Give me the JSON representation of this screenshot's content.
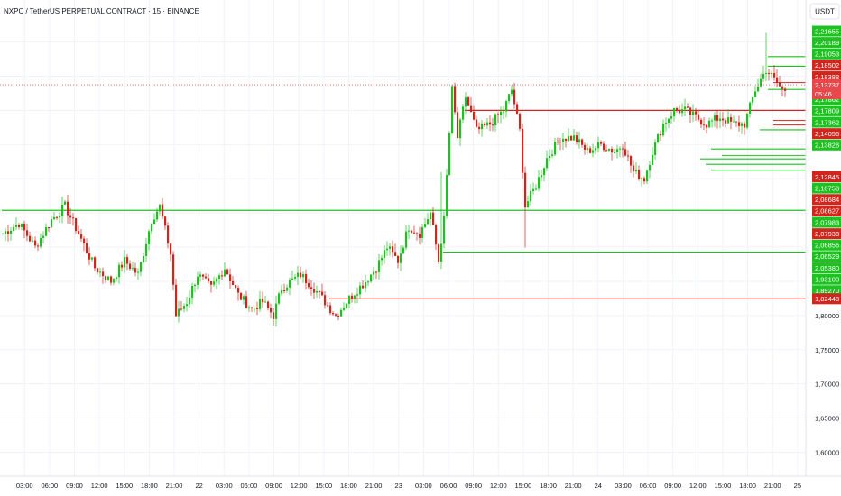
{
  "header": {
    "title": "NXPC / TetherUS PERPETUAL CONTRACT · 15 · BINANCE",
    "currency_button": "USDT"
  },
  "chart_data": {
    "type": "candlestick",
    "symbol": "NXPC / TetherUS PERPETUAL CONTRACT",
    "interval": "15",
    "exchange": "BINANCE",
    "ylim": [
      1.56,
      2.23
    ],
    "price_ticks": [
      "1,85000",
      "1,80000",
      "1,75000",
      "1,70000",
      "1,65000",
      "1,60000"
    ],
    "price_tick_values": [
      1.85,
      1.8,
      1.75,
      1.7,
      1.65,
      1.6
    ],
    "time_ticks": [
      "03:00",
      "06:00",
      "09:00",
      "12:00",
      "15:00",
      "18:00",
      "21:00",
      "22",
      "03:00",
      "06:00",
      "09:00",
      "12:00",
      "15:00",
      "18:00",
      "21:00",
      "23",
      "03:00",
      "06:00",
      "09:00",
      "12:00",
      "15:00",
      "18:00",
      "21:00",
      "24",
      "03:00",
      "06:00",
      "09:00",
      "12:00",
      "15:00",
      "18:00",
      "21:00",
      "25"
    ],
    "current_price": {
      "label": "2,13737",
      "countdown": "05:46",
      "value": 2.13737
    },
    "price_tags": [
      {
        "label": "2,21655",
        "value": 2.21655,
        "color": "#1ec220"
      },
      {
        "label": "2,20189",
        "value": 2.20189,
        "color": "#1ec220"
      },
      {
        "label": "2,19053",
        "value": 2.19053,
        "color": "#1ec220"
      },
      {
        "label": "2,18502",
        "value": 2.18502,
        "color": "#d1261d"
      },
      {
        "label": "2,18388",
        "value": 2.18388,
        "color": "#d1261d"
      },
      {
        "label": "2,18146",
        "value": 2.18146,
        "color": "#d1261d"
      },
      {
        "label": "2,17862",
        "value": 2.17862,
        "color": "#1ec220"
      },
      {
        "label": "2,17809",
        "value": 2.17809,
        "color": "#1ec220"
      },
      {
        "label": "2,17362",
        "value": 2.17362,
        "color": "#1ec220"
      },
      {
        "label": "2,14056",
        "value": 2.14056,
        "color": "#d1261d"
      },
      {
        "label": "2,13828",
        "value": 2.13828,
        "color": "#1ec220"
      },
      {
        "label": "2,12845",
        "value": 2.12845,
        "color": "#d1261d"
      },
      {
        "label": "2,10758",
        "value": 2.10758,
        "color": "#1ec220"
      },
      {
        "label": "2,08684",
        "value": 2.08684,
        "color": "#d1261d"
      },
      {
        "label": "2,08627",
        "value": 2.08627,
        "color": "#d1261d"
      },
      {
        "label": "2,07983",
        "value": 2.07983,
        "color": "#1ec220"
      },
      {
        "label": "2,07938",
        "value": 2.07938,
        "color": "#d1261d"
      },
      {
        "label": "2,06856",
        "value": 2.06856,
        "color": "#1ec220"
      },
      {
        "label": "2,06529",
        "value": 2.06529,
        "color": "#1ec220"
      },
      {
        "label": "2,05380",
        "value": 2.0538,
        "color": "#1ec220"
      },
      {
        "label": "1,93100",
        "value": 1.931,
        "color": "#1ec220"
      },
      {
        "label": "1,89270",
        "value": 1.8927,
        "color": "#1ec220"
      },
      {
        "label": "1,82448",
        "value": 1.82448,
        "color": "#d1261d"
      }
    ],
    "long_lines": [
      {
        "from_bar": 0,
        "value": 1.9538,
        "color": "#1ec220"
      },
      {
        "from_bar": 163,
        "value": 1.8927,
        "color": "#1ec220"
      },
      {
        "from_bar": 121,
        "value": 1.82448,
        "color": "#d1261d"
      },
      {
        "from_bar": 171,
        "value": 2.1,
        "color": "#d1261d"
      }
    ],
    "short_lines": [
      {
        "from_bar": 283,
        "value": 2.1786,
        "color": "#1ec220"
      },
      {
        "from_bar": 283,
        "value": 2.1646,
        "color": "#1ec220"
      },
      {
        "from_bar": 285,
        "value": 2.1406,
        "color": "#d1261d"
      },
      {
        "from_bar": 283,
        "value": 2.1306,
        "color": "#1ec220"
      },
      {
        "from_bar": 285,
        "value": 2.0852,
        "color": "#d1261d"
      },
      {
        "from_bar": 285,
        "value": 2.0786,
        "color": "#d1261d"
      },
      {
        "from_bar": 280,
        "value": 2.0716,
        "color": "#1ec220"
      },
      {
        "from_bar": 262,
        "value": 2.0436,
        "color": "#1ec220"
      },
      {
        "from_bar": 266,
        "value": 2.0341,
        "color": "#1ec220"
      },
      {
        "from_bar": 258,
        "value": 2.0291,
        "color": "#1ec220"
      },
      {
        "from_bar": 260,
        "value": 2.0211,
        "color": "#1ec220"
      },
      {
        "from_bar": 262,
        "value": 2.0126,
        "color": "#1ec220"
      }
    ],
    "bull_color": "#1ec220",
    "bear_color": "#d1261d",
    "anchors": [
      [
        0,
        1.92
      ],
      [
        6,
        1.935
      ],
      [
        12,
        1.9
      ],
      [
        18,
        1.94
      ],
      [
        23,
        1.96
      ],
      [
        28,
        1.92
      ],
      [
        34,
        1.87
      ],
      [
        40,
        1.85
      ],
      [
        45,
        1.88
      ],
      [
        50,
        1.86
      ],
      [
        55,
        1.94
      ],
      [
        58,
        1.96
      ],
      [
        62,
        1.89
      ],
      [
        64,
        1.8
      ],
      [
        68,
        1.82
      ],
      [
        72,
        1.86
      ],
      [
        77,
        1.84
      ],
      [
        82,
        1.87
      ],
      [
        87,
        1.83
      ],
      [
        92,
        1.81
      ],
      [
        96,
        1.82
      ],
      [
        100,
        1.8
      ],
      [
        103,
        1.84
      ],
      [
        110,
        1.86
      ],
      [
        115,
        1.84
      ],
      [
        119,
        1.82
      ],
      [
        123,
        1.8
      ],
      [
        129,
        1.83
      ],
      [
        134,
        1.85
      ],
      [
        138,
        1.87
      ],
      [
        142,
        1.9
      ],
      [
        146,
        1.88
      ],
      [
        150,
        1.93
      ],
      [
        154,
        1.92
      ],
      [
        158,
        1.95
      ],
      [
        161,
        1.88
      ],
      [
        163,
        1.94
      ],
      [
        166,
        2.13
      ],
      [
        168,
        2.06
      ],
      [
        171,
        2.12
      ],
      [
        175,
        2.07
      ],
      [
        180,
        2.08
      ],
      [
        185,
        2.1
      ],
      [
        188,
        2.13
      ],
      [
        191,
        2.07
      ],
      [
        193,
        1.96
      ],
      [
        197,
        1.99
      ],
      [
        201,
        2.03
      ],
      [
        206,
        2.06
      ],
      [
        211,
        2.06
      ],
      [
        216,
        2.04
      ],
      [
        221,
        2.05
      ],
      [
        226,
        2.04
      ],
      [
        229,
        2.05
      ],
      [
        233,
        2.01
      ],
      [
        237,
        2.0
      ],
      [
        240,
        2.04
      ],
      [
        244,
        2.08
      ],
      [
        248,
        2.1
      ],
      [
        252,
        2.1
      ],
      [
        256,
        2.09
      ],
      [
        260,
        2.08
      ],
      [
        265,
        2.09
      ],
      [
        270,
        2.08
      ],
      [
        274,
        2.08
      ],
      [
        278,
        2.13
      ],
      [
        282,
        2.16
      ],
      [
        286,
        2.14
      ],
      [
        288,
        2.13
      ]
    ]
  }
}
